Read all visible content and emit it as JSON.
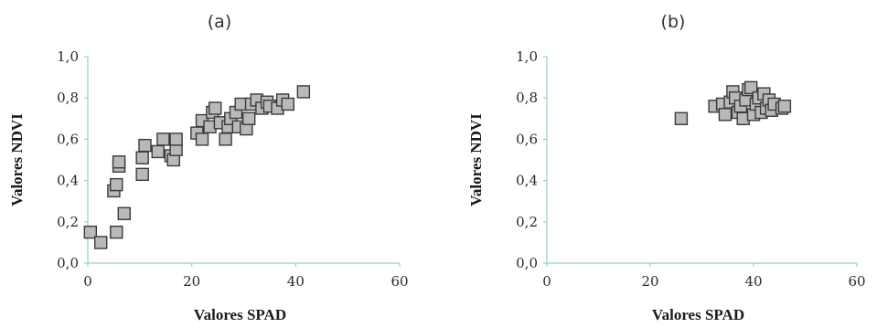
{
  "chart_data": [
    {
      "type": "scatter",
      "panel_label": "(a)",
      "xlabel": "Valores SPAD",
      "ylabel": "Valores NDVI",
      "xlim": [
        0,
        60
      ],
      "ylim": [
        0,
        1
      ],
      "xticks": [
        0,
        20,
        40,
        60
      ],
      "xtick_labels": [
        "0",
        "20",
        "40",
        "60"
      ],
      "yticks": [
        0,
        0.2,
        0.4,
        0.6,
        0.8,
        1.0
      ],
      "ytick_labels": [
        "0,0",
        "0,2",
        "0,4",
        "0,6",
        "0,8",
        "1,0"
      ],
      "grid": false,
      "points": [
        {
          "x": 0.5,
          "y": 0.15
        },
        {
          "x": 2.5,
          "y": 0.1
        },
        {
          "x": 5.5,
          "y": 0.15
        },
        {
          "x": 7.0,
          "y": 0.24
        },
        {
          "x": 5.0,
          "y": 0.35
        },
        {
          "x": 5.5,
          "y": 0.38
        },
        {
          "x": 6.0,
          "y": 0.47
        },
        {
          "x": 6.0,
          "y": 0.49
        },
        {
          "x": 10.5,
          "y": 0.43
        },
        {
          "x": 10.5,
          "y": 0.51
        },
        {
          "x": 11.0,
          "y": 0.57
        },
        {
          "x": 13.5,
          "y": 0.54
        },
        {
          "x": 14.5,
          "y": 0.6
        },
        {
          "x": 16.0,
          "y": 0.52
        },
        {
          "x": 16.5,
          "y": 0.5
        },
        {
          "x": 17.0,
          "y": 0.55
        },
        {
          "x": 17.0,
          "y": 0.6
        },
        {
          "x": 21.0,
          "y": 0.63
        },
        {
          "x": 22.0,
          "y": 0.6
        },
        {
          "x": 22.0,
          "y": 0.69
        },
        {
          "x": 23.5,
          "y": 0.66
        },
        {
          "x": 24.0,
          "y": 0.73
        },
        {
          "x": 24.5,
          "y": 0.75
        },
        {
          "x": 25.5,
          "y": 0.68
        },
        {
          "x": 26.5,
          "y": 0.6
        },
        {
          "x": 27.0,
          "y": 0.66
        },
        {
          "x": 27.5,
          "y": 0.7
        },
        {
          "x": 28.5,
          "y": 0.73
        },
        {
          "x": 29.0,
          "y": 0.66
        },
        {
          "x": 29.5,
          "y": 0.77
        },
        {
          "x": 30.5,
          "y": 0.65
        },
        {
          "x": 31.0,
          "y": 0.7
        },
        {
          "x": 31.5,
          "y": 0.77
        },
        {
          "x": 32.5,
          "y": 0.79
        },
        {
          "x": 33.5,
          "y": 0.75
        },
        {
          "x": 34.5,
          "y": 0.78
        },
        {
          "x": 35.0,
          "y": 0.76
        },
        {
          "x": 36.5,
          "y": 0.75
        },
        {
          "x": 37.5,
          "y": 0.79
        },
        {
          "x": 38.5,
          "y": 0.77
        },
        {
          "x": 41.5,
          "y": 0.83
        }
      ]
    },
    {
      "type": "scatter",
      "panel_label": "(b)",
      "xlabel": "Valores SPAD",
      "ylabel": "Valores NDVI",
      "xlim": [
        0,
        60
      ],
      "ylim": [
        0,
        1
      ],
      "xticks": [
        0,
        20,
        40,
        60
      ],
      "xtick_labels": [
        "0",
        "20",
        "40",
        "60"
      ],
      "yticks": [
        0,
        0.2,
        0.4,
        0.6,
        0.8,
        1.0
      ],
      "ytick_labels": [
        "0,0",
        "0,2",
        "0,4",
        "0,6",
        "0,8",
        "1,0"
      ],
      "grid": false,
      "points": [
        {
          "x": 26.0,
          "y": 0.7
        },
        {
          "x": 32.5,
          "y": 0.76
        },
        {
          "x": 34.0,
          "y": 0.77
        },
        {
          "x": 34.5,
          "y": 0.72
        },
        {
          "x": 35.5,
          "y": 0.78
        },
        {
          "x": 36.0,
          "y": 0.83
        },
        {
          "x": 36.5,
          "y": 0.8
        },
        {
          "x": 37.0,
          "y": 0.73
        },
        {
          "x": 37.5,
          "y": 0.76
        },
        {
          "x": 38.0,
          "y": 0.7
        },
        {
          "x": 38.5,
          "y": 0.79
        },
        {
          "x": 39.0,
          "y": 0.84
        },
        {
          "x": 39.5,
          "y": 0.85
        },
        {
          "x": 40.0,
          "y": 0.72
        },
        {
          "x": 40.5,
          "y": 0.77
        },
        {
          "x": 41.0,
          "y": 0.8
        },
        {
          "x": 41.5,
          "y": 0.73
        },
        {
          "x": 42.0,
          "y": 0.82
        },
        {
          "x": 42.5,
          "y": 0.75
        },
        {
          "x": 43.0,
          "y": 0.79
        },
        {
          "x": 43.5,
          "y": 0.74
        },
        {
          "x": 44.0,
          "y": 0.77
        },
        {
          "x": 45.5,
          "y": 0.75
        },
        {
          "x": 46.0,
          "y": 0.76
        }
      ]
    }
  ]
}
